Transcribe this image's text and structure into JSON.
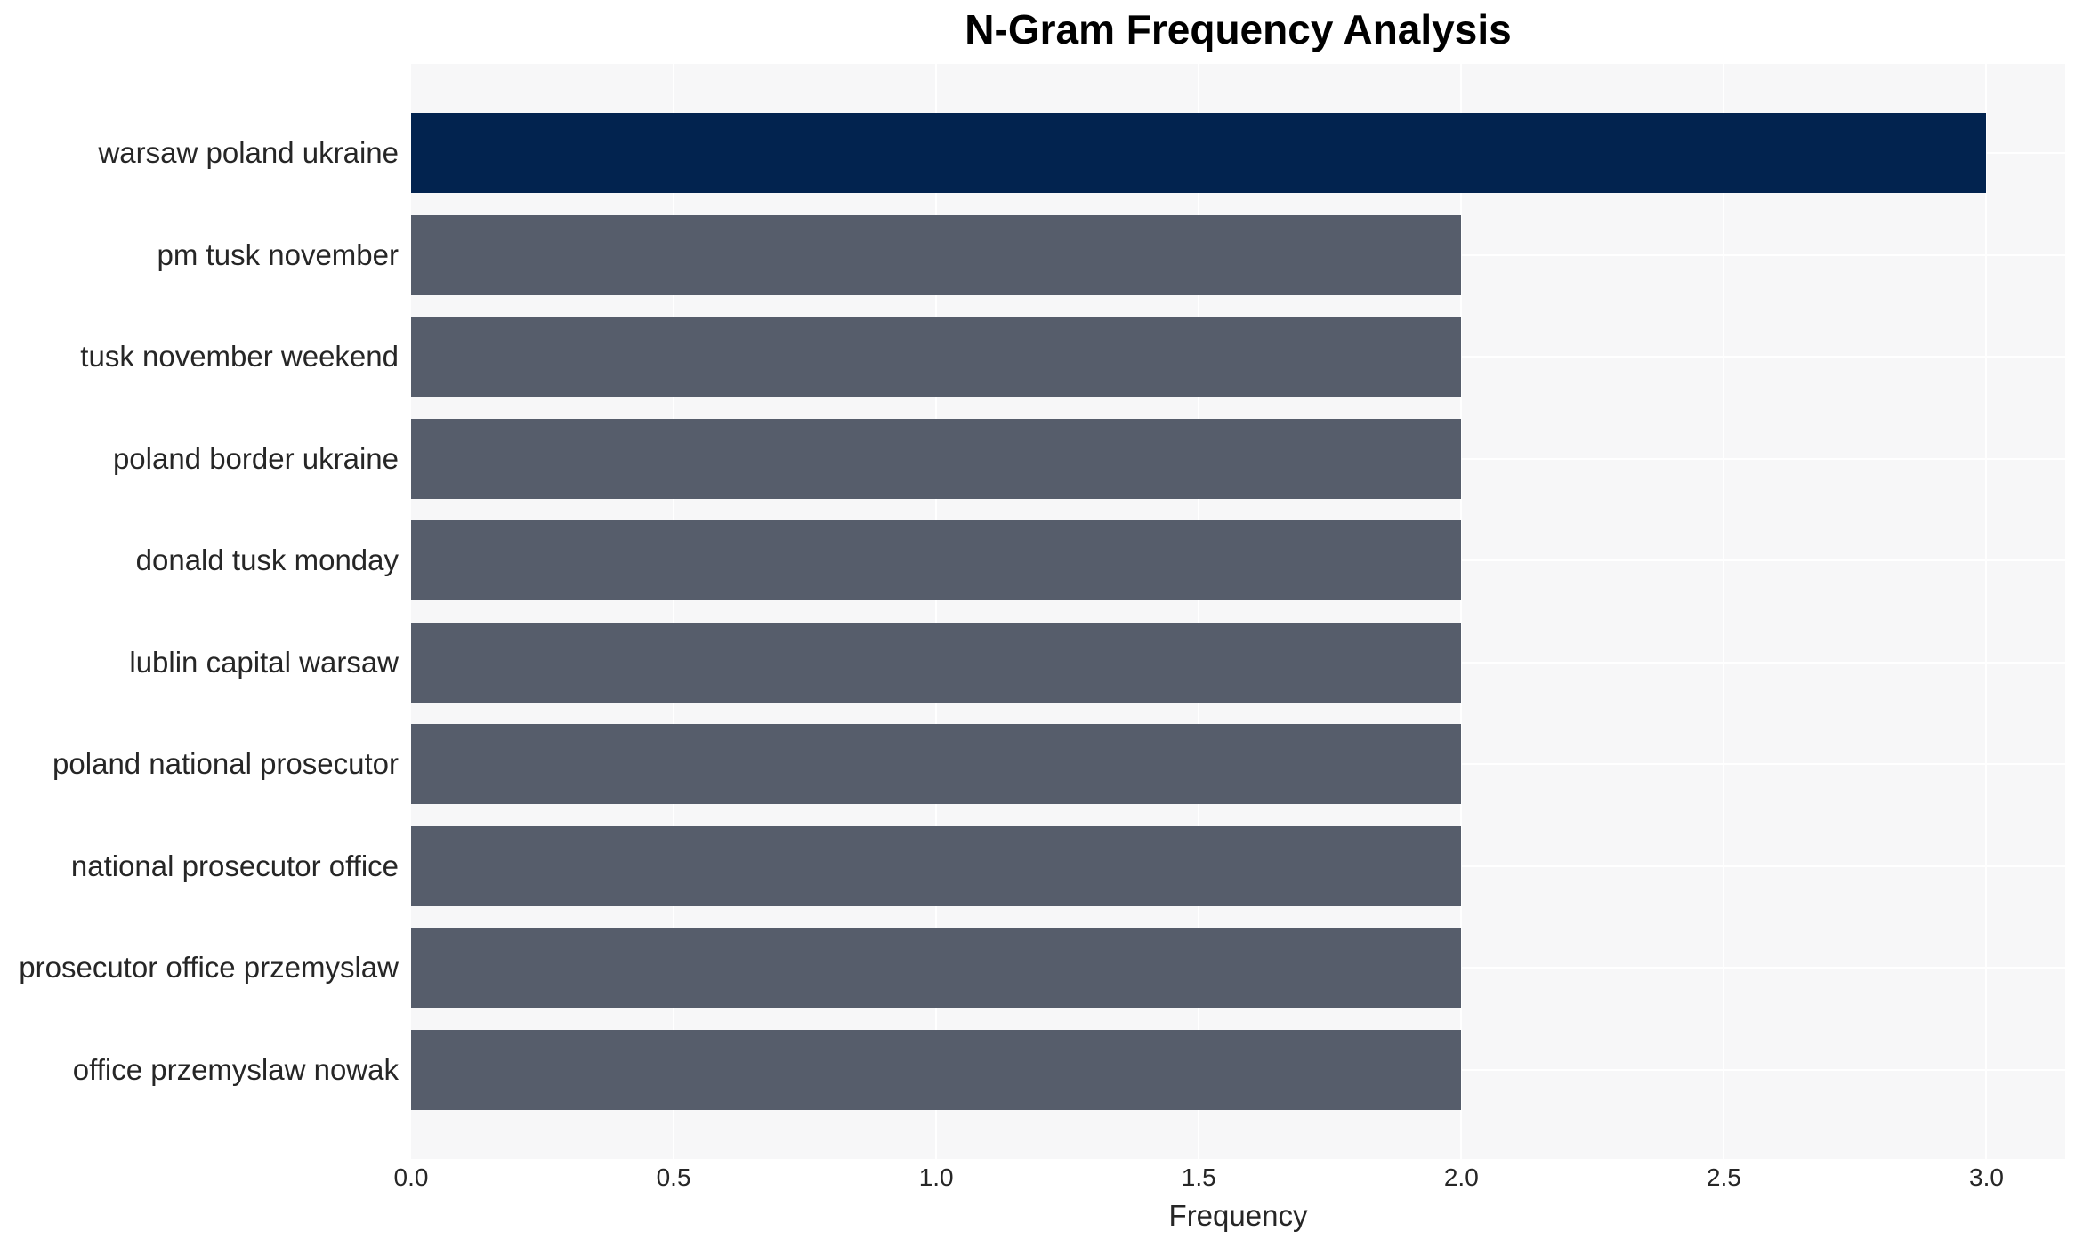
{
  "chart_data": {
    "type": "bar",
    "orientation": "horizontal",
    "title": "N-Gram Frequency Analysis",
    "xlabel": "Frequency",
    "ylabel": "",
    "categories": [
      "warsaw poland ukraine",
      "pm tusk november",
      "tusk november weekend",
      "poland border ukraine",
      "donald tusk monday",
      "lublin capital warsaw",
      "poland national prosecutor",
      "national prosecutor office",
      "prosecutor office przemyslaw",
      "office przemyslaw nowak"
    ],
    "values": [
      3,
      2,
      2,
      2,
      2,
      2,
      2,
      2,
      2,
      2
    ],
    "bar_colors": [
      "#02234f",
      "#565d6b",
      "#565d6b",
      "#565d6b",
      "#565d6b",
      "#565d6b",
      "#565d6b",
      "#565d6b",
      "#565d6b",
      "#565d6b"
    ],
    "xlim": [
      0,
      3.15
    ],
    "xticks": [
      0.0,
      0.5,
      1.0,
      1.5,
      2.0,
      2.5,
      3.0
    ],
    "xtick_labels": [
      "0.0",
      "0.5",
      "1.0",
      "1.5",
      "2.0",
      "2.5",
      "3.0"
    ],
    "grid": true,
    "legend": "none",
    "colors": {
      "highlight_bar": "#02234f",
      "bar": "#565d6b",
      "panel_background": "#f7f7f8",
      "gridline": "#ffffff",
      "text": "#262626",
      "title": "#000000"
    }
  }
}
